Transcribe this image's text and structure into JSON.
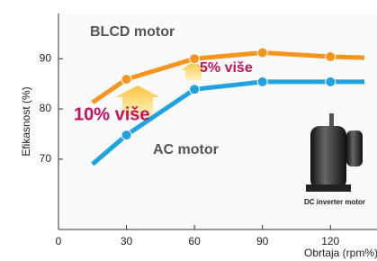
{
  "chart_data": {
    "type": "line",
    "y_label": "Efikasnost (%)",
    "x_label": "Obrtaja (rpm%)",
    "x": [
      15,
      30,
      60,
      90,
      120,
      135
    ],
    "series": [
      {
        "name": "BLCD motor",
        "color": "#f7941d",
        "values": [
          81.3,
          85.9,
          90,
          91.2,
          90.4,
          90.2
        ]
      },
      {
        "name": "AC motor",
        "color": "#1fa3e0",
        "values": [
          69,
          74.8,
          83.9,
          85.4,
          85.4,
          85.4
        ]
      }
    ],
    "annotations": [
      "5% više",
      "10% više",
      "DC inverter motor"
    ],
    "xlim": [
      0,
      135
    ],
    "xticks": [
      0,
      30,
      60,
      90,
      120
    ],
    "ylim": [
      56,
      99
    ],
    "yticks": [
      70,
      80,
      90
    ]
  }
}
